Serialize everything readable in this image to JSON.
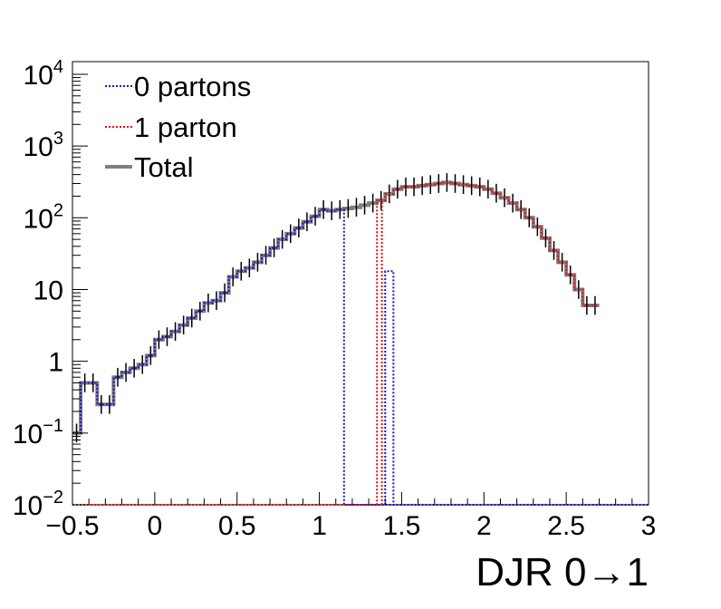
{
  "chart_data": {
    "type": "line",
    "title": "",
    "xlabel": "DJR 0→1",
    "ylabel": "",
    "xlim": [
      -0.5,
      3.0
    ],
    "ylim": [
      0.01,
      15000
    ],
    "yscale": "log",
    "grid": false,
    "legend_position": "top-left",
    "x_ticks": [
      "−0.5",
      "0",
      "0.5",
      "1",
      "1.5",
      "2",
      "2.5",
      "3"
    ],
    "x_tick_values": [
      -0.5,
      0,
      0.5,
      1,
      1.5,
      2,
      2.5,
      3
    ],
    "y_ticks": [
      {
        "value": 0.01,
        "base": "10",
        "exp": "−2",
        "label": ""
      },
      {
        "value": 0.1,
        "base": "10",
        "exp": "−1",
        "label": ""
      },
      {
        "value": 1,
        "base": "",
        "exp": "",
        "label": "1"
      },
      {
        "value": 10,
        "base": "",
        "exp": "",
        "label": "10"
      },
      {
        "value": 100,
        "base": "10",
        "exp": "2",
        "label": ""
      },
      {
        "value": 1000,
        "base": "10",
        "exp": "3",
        "label": ""
      },
      {
        "value": 10000,
        "base": "10",
        "exp": "4",
        "label": ""
      }
    ],
    "bin_width": 0.05,
    "bin_edges_start": -0.5,
    "series": [
      {
        "name": "0 partons",
        "color": "#1515cc",
        "style": "dotted",
        "values": [
          0.1,
          0.5,
          0.5,
          0.25,
          0.25,
          0.6,
          0.7,
          0.8,
          0.9,
          1.2,
          2.0,
          2.2,
          2.6,
          3.2,
          4.0,
          5.0,
          6.5,
          7.0,
          9.0,
          15.0,
          18.0,
          20.0,
          24.0,
          30.0,
          38.0,
          50.0,
          60.0,
          72.0,
          88.0,
          105.0,
          130.0,
          125.0,
          130.0,
          0.01,
          0.01,
          0.01,
          0.01,
          0.01,
          0.01,
          0.01,
          0.01,
          0.01,
          0.01,
          0.01,
          0.01,
          0.01,
          0.01,
          0.01,
          0.01,
          0.01,
          0.01,
          0.01,
          0.01,
          0.01,
          0.01,
          0.01,
          0.01,
          0.01,
          0.01,
          0.01,
          0.01,
          0.01,
          0.01,
          0.01,
          0.01,
          0.01,
          0.01,
          0.01,
          0.01,
          0.01
        ],
        "extra_step": {
          "x0": 1.4,
          "x1": 1.45,
          "value": 18.0
        }
      },
      {
        "name": "1 parton",
        "color": "#dd1111",
        "style": "dotted",
        "values": [
          0.01,
          0.01,
          0.01,
          0.01,
          0.01,
          0.01,
          0.01,
          0.01,
          0.01,
          0.01,
          0.01,
          0.01,
          0.01,
          0.01,
          0.01,
          0.01,
          0.01,
          0.01,
          0.01,
          0.01,
          0.01,
          0.01,
          0.01,
          0.01,
          0.01,
          0.01,
          0.01,
          0.01,
          0.01,
          0.01,
          0.01,
          0.01,
          0.01,
          0.01,
          0.01,
          0.01,
          0.01,
          175.0,
          215.0,
          250.0,
          270.0,
          270.0,
          280.0,
          290.0,
          300.0,
          310.0,
          300.0,
          290.0,
          280.0,
          270.0,
          250.0,
          220.0,
          190.0,
          160.0,
          130.0,
          100.0,
          75.0,
          52.0,
          35.0,
          24.0,
          16.0,
          10.0,
          6.0,
          6.0
        ],
        "start_step": {
          "x": 1.38,
          "from": 0.01,
          "to": 175.0
        }
      },
      {
        "name": "Total",
        "color": "#7f7f7f",
        "style": "solid",
        "values": [
          0.1,
          0.5,
          0.5,
          0.25,
          0.25,
          0.6,
          0.7,
          0.8,
          0.9,
          1.2,
          2.0,
          2.2,
          2.6,
          3.2,
          4.0,
          5.0,
          6.5,
          7.0,
          9.0,
          15.0,
          18.0,
          20.0,
          24.0,
          30.0,
          38.0,
          50.0,
          60.0,
          72.0,
          88.0,
          105.0,
          130.0,
          125.0,
          130.0,
          135.0,
          140.0,
          150.0,
          160.0,
          175.0,
          215.0,
          250.0,
          270.0,
          270.0,
          280.0,
          290.0,
          300.0,
          310.0,
          300.0,
          290.0,
          280.0,
          270.0,
          250.0,
          220.0,
          190.0,
          160.0,
          130.0,
          100.0,
          75.0,
          52.0,
          35.0,
          24.0,
          16.0,
          10.0,
          6.0,
          6.0
        ]
      }
    ]
  }
}
